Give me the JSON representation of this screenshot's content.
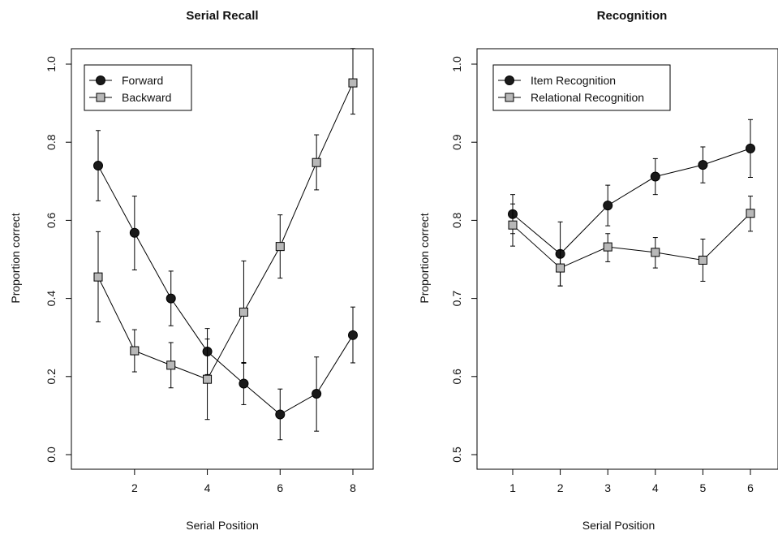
{
  "chart_data": [
    {
      "type": "line",
      "title": "Serial Recall",
      "xlabel": "Serial Position",
      "ylabel": "Proportion correct",
      "xlim": [
        0.5,
        8.5
      ],
      "ylim": [
        0.0,
        1.0
      ],
      "x_ticks": [
        "2",
        "4",
        "6",
        "8"
      ],
      "y_ticks": [
        "0.0",
        "0.2",
        "0.4",
        "0.6",
        "0.8",
        "1.0"
      ],
      "grid": false,
      "legend_position": "top-left",
      "series": [
        {
          "name": "Forward",
          "marker": "filled-circle",
          "color": "#1a1a1a",
          "x": [
            1,
            2,
            3,
            4,
            5,
            6,
            7,
            8
          ],
          "y": [
            0.74,
            0.568,
            0.4,
            0.264,
            0.182,
            0.103,
            0.156,
            0.306
          ],
          "error_low": [
            0.65,
            0.473,
            0.33,
            0.205,
            0.128,
            0.038,
            0.06,
            0.235
          ],
          "error_high": [
            0.83,
            0.662,
            0.47,
            0.323,
            0.236,
            0.168,
            0.25,
            0.378
          ]
        },
        {
          "name": "Backward",
          "marker": "grey-square",
          "color": "#b8b8b8",
          "x": [
            1,
            2,
            3,
            4,
            5,
            6,
            7,
            8
          ],
          "y": [
            0.455,
            0.266,
            0.229,
            0.193,
            0.365,
            0.533,
            0.748,
            0.952
          ],
          "error_low": [
            0.34,
            0.212,
            0.171,
            0.09,
            0.234,
            0.452,
            0.678,
            0.872
          ],
          "error_high": [
            0.571,
            0.32,
            0.287,
            0.296,
            0.496,
            0.614,
            0.819,
            1.04
          ]
        }
      ]
    },
    {
      "type": "line",
      "title": "Recognition",
      "xlabel": "Serial Position",
      "ylabel": "Proportion correct",
      "xlim": [
        0.6,
        6.4
      ],
      "ylim": [
        0.5,
        1.0
      ],
      "x_ticks": [
        "1",
        "2",
        "3",
        "4",
        "5",
        "6"
      ],
      "y_ticks": [
        "0.5",
        "0.6",
        "0.7",
        "0.8",
        "0.9",
        "1.0"
      ],
      "grid": false,
      "legend_position": "top-left",
      "series": [
        {
          "name": "Item Recognition",
          "marker": "filled-circle",
          "color": "#1a1a1a",
          "x": [
            1,
            2,
            3,
            4,
            5,
            6
          ],
          "y": [
            0.808,
            0.757,
            0.819,
            0.856,
            0.871,
            0.892
          ],
          "error_low": [
            0.783,
            0.716,
            0.793,
            0.833,
            0.848,
            0.855
          ],
          "error_high": [
            0.833,
            0.798,
            0.845,
            0.879,
            0.894,
            0.929
          ]
        },
        {
          "name": "Relational Recognition",
          "marker": "grey-square",
          "color": "#b8b8b8",
          "x": [
            1,
            2,
            3,
            4,
            5,
            6
          ],
          "y": [
            0.794,
            0.739,
            0.766,
            0.759,
            0.749,
            0.809
          ],
          "error_low": [
            0.767,
            0.716,
            0.747,
            0.739,
            0.722,
            0.786
          ],
          "error_high": [
            0.821,
            0.762,
            0.783,
            0.778,
            0.776,
            0.831
          ]
        }
      ]
    }
  ]
}
